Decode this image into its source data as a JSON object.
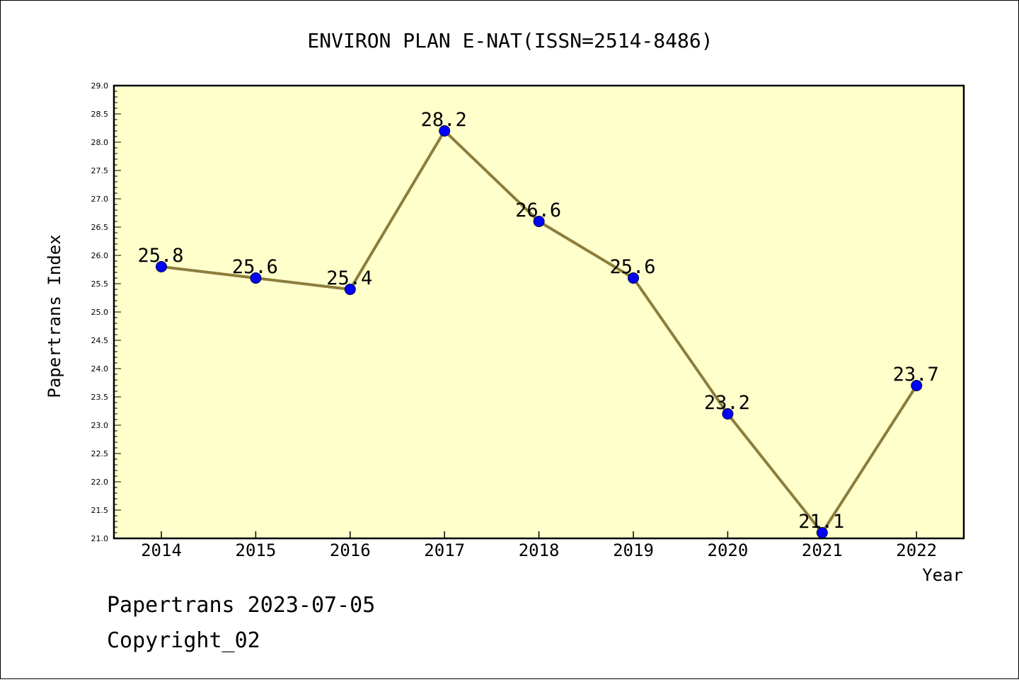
{
  "chart_data": {
    "type": "line",
    "title": "ENVIRON PLAN E-NAT(ISSN=2514-8486)",
    "xlabel": "Year",
    "ylabel": "Papertrans Index",
    "categories": [
      "2014",
      "2015",
      "2016",
      "2017",
      "2018",
      "2019",
      "2020",
      "2021",
      "2022"
    ],
    "values": [
      25.8,
      25.6,
      25.4,
      28.2,
      26.6,
      25.6,
      23.2,
      21.1,
      23.7
    ],
    "data_labels": [
      "25.8",
      "25.6",
      "25.4",
      "28.2",
      "26.6",
      "25.6",
      "23.2",
      "21.1",
      "23.7"
    ],
    "ylim": [
      21.0,
      29.0
    ],
    "yticks": [
      "21.0",
      "21.5",
      "22.0",
      "22.5",
      "23.0",
      "23.5",
      "24.0",
      "24.5",
      "25.0",
      "25.5",
      "26.0",
      "26.5",
      "27.0",
      "27.5",
      "28.0",
      "28.5",
      "29.0"
    ],
    "grid": false,
    "colors": {
      "plot_bg": "#ffffcc",
      "line": "#8c7d3c",
      "marker": "#0000ff"
    }
  },
  "footer": {
    "line1": "Papertrans 2023-07-05",
    "line2": "Copyright_02"
  }
}
